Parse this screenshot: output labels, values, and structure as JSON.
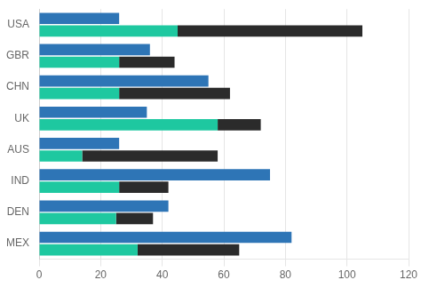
{
  "chart_data": {
    "type": "bar",
    "orientation": "horizontal",
    "categories": [
      "USA",
      "GBR",
      "CHN",
      "UK",
      "AUS",
      "IND",
      "DEN",
      "MEX"
    ],
    "series": [
      {
        "color": "#2E75B6",
        "values": [
          26,
          36,
          55,
          35,
          26,
          75,
          42,
          82
        ]
      },
      {
        "color": "#1EC8A0",
        "values": [
          45,
          26,
          26,
          58,
          14,
          26,
          25,
          32
        ],
        "stacked": true
      },
      {
        "color": "#2B2B2B",
        "values": [
          60,
          18,
          36,
          14,
          44,
          16,
          12,
          33
        ],
        "stacked": true
      }
    ],
    "xlim": [
      0,
      120
    ],
    "xticks": [
      0,
      20,
      40,
      60,
      80,
      100,
      120
    ],
    "grid": true
  }
}
